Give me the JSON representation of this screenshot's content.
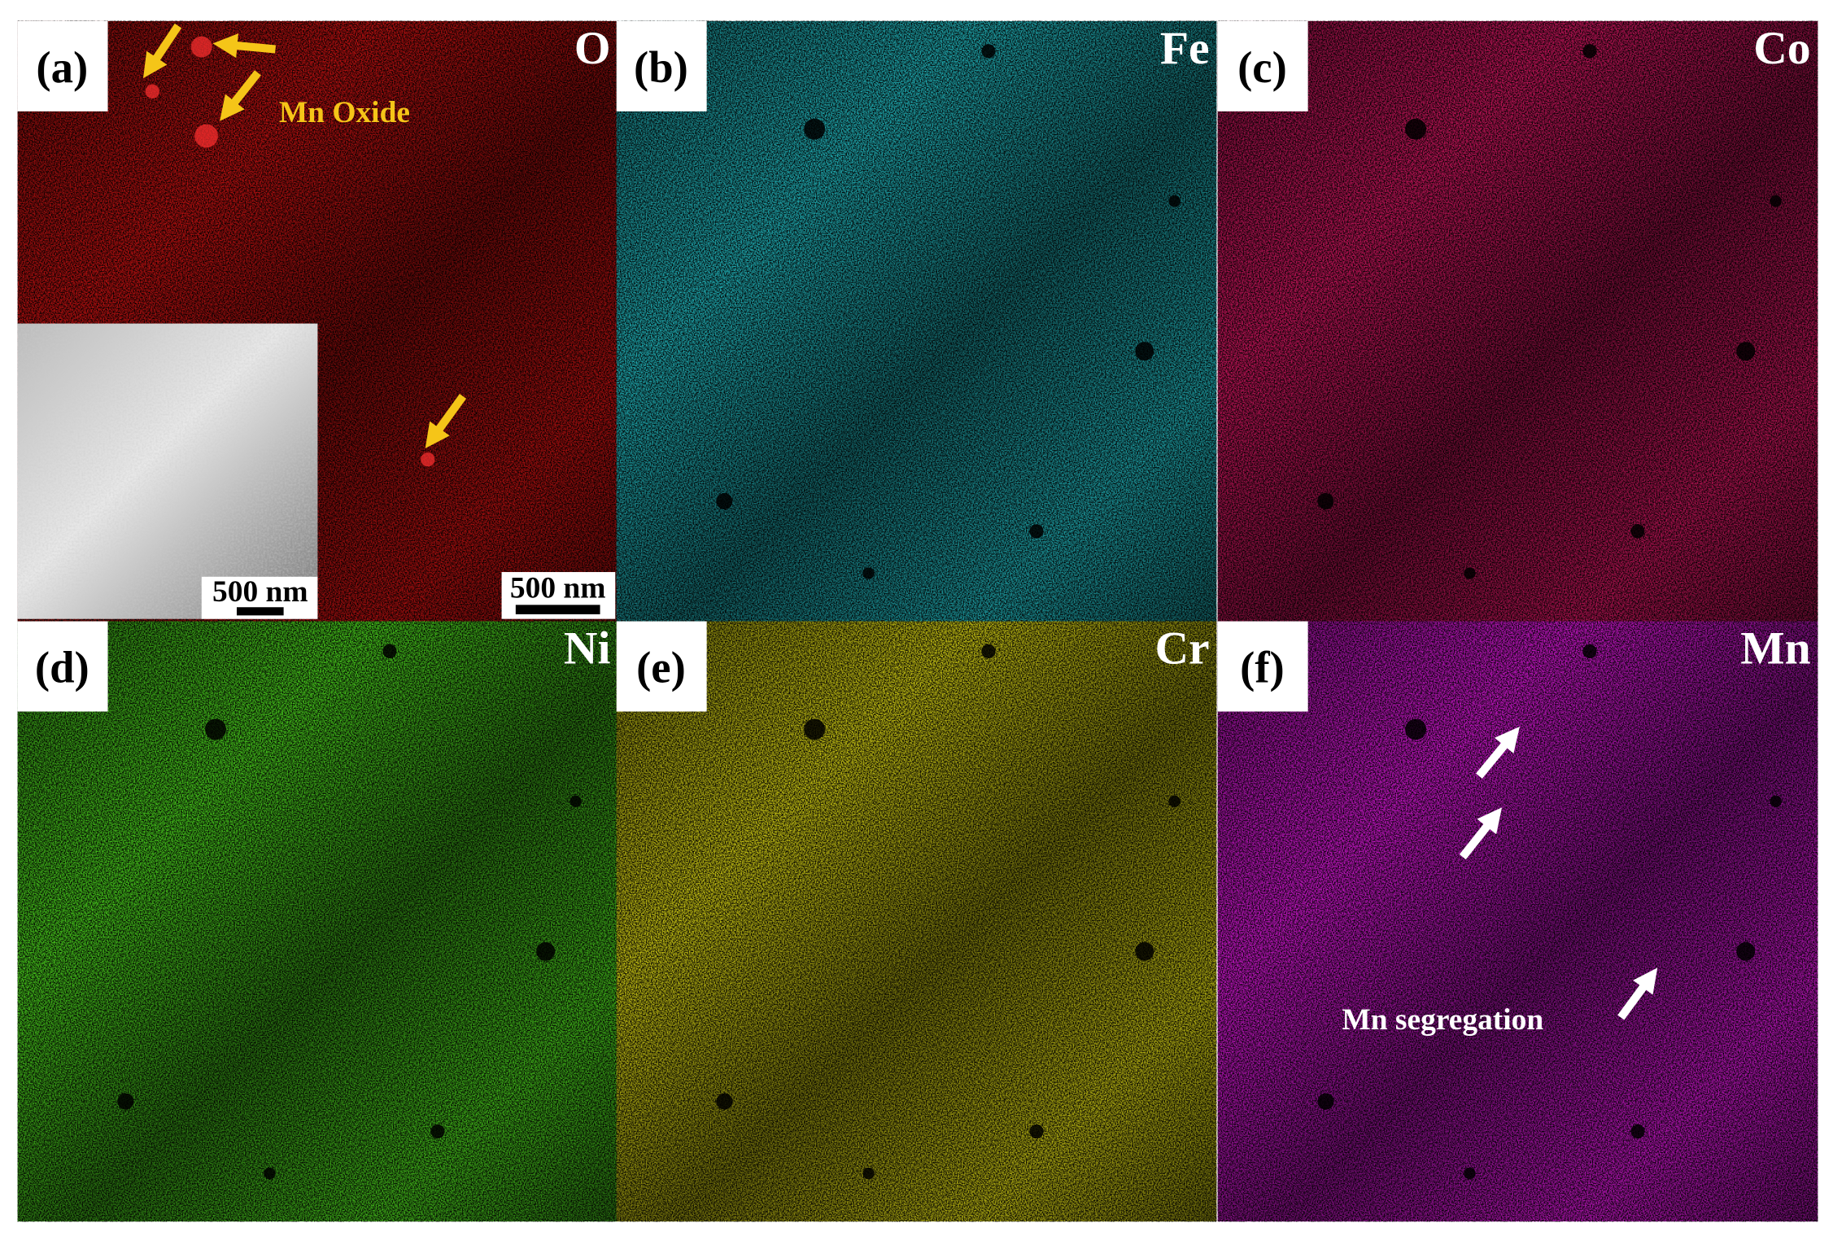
{
  "panels": [
    {
      "label": "(a)",
      "element": "O",
      "annotation": "Mn Oxide",
      "inset_scale_bar": "500 nm",
      "scale_bar": "500 nm"
    },
    {
      "label": "(b)",
      "element": "Fe"
    },
    {
      "label": "(c)",
      "element": "Co"
    },
    {
      "label": "(d)",
      "element": "Ni"
    },
    {
      "label": "(e)",
      "element": "Cr"
    },
    {
      "label": "(f)",
      "element": "Mn",
      "annotation": "Mn segregation"
    }
  ]
}
